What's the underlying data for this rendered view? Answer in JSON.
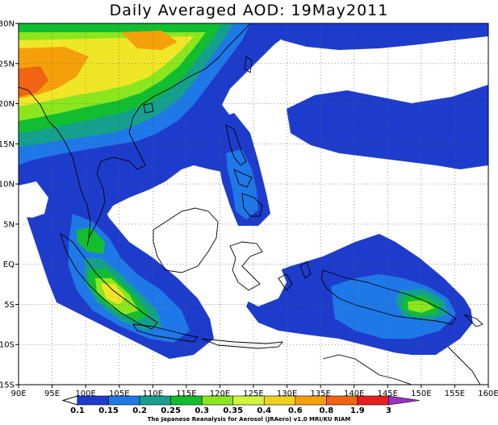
{
  "title": "Daily Averaged AOD: 19May2011",
  "credit": "The Japanese Reanalysis for Aerosol (JRAero) v1.0 MRI/KU RIAM",
  "axes": {
    "lon_min": 90,
    "lon_max": 160,
    "lat_min": -15,
    "lat_max": 30,
    "x_ticks": [
      "90E",
      "95E",
      "100E",
      "105E",
      "110E",
      "115E",
      "120E",
      "125E",
      "130E",
      "135E",
      "140E",
      "145E",
      "150E",
      "155E",
      "160E"
    ],
    "y_ticks": [
      "30N",
      "25N",
      "20N",
      "15N",
      "10N",
      "5N",
      "EQ",
      "5S",
      "10S",
      "15S"
    ],
    "grid": "dotted"
  },
  "colorbar": {
    "labels": [
      "0.1",
      "0.15",
      "0.2",
      "0.25",
      "0.3",
      "0.35",
      "0.4",
      "0.6",
      "0.8",
      "1.9",
      "3"
    ],
    "colors": [
      "#1e3ccc",
      "#1e78e8",
      "#14a08c",
      "#12be30",
      "#8ce61e",
      "#d2f53c",
      "#f0d21e",
      "#f5a00a",
      "#f06414",
      "#e61e1e",
      "#9b32c8"
    ]
  }
}
